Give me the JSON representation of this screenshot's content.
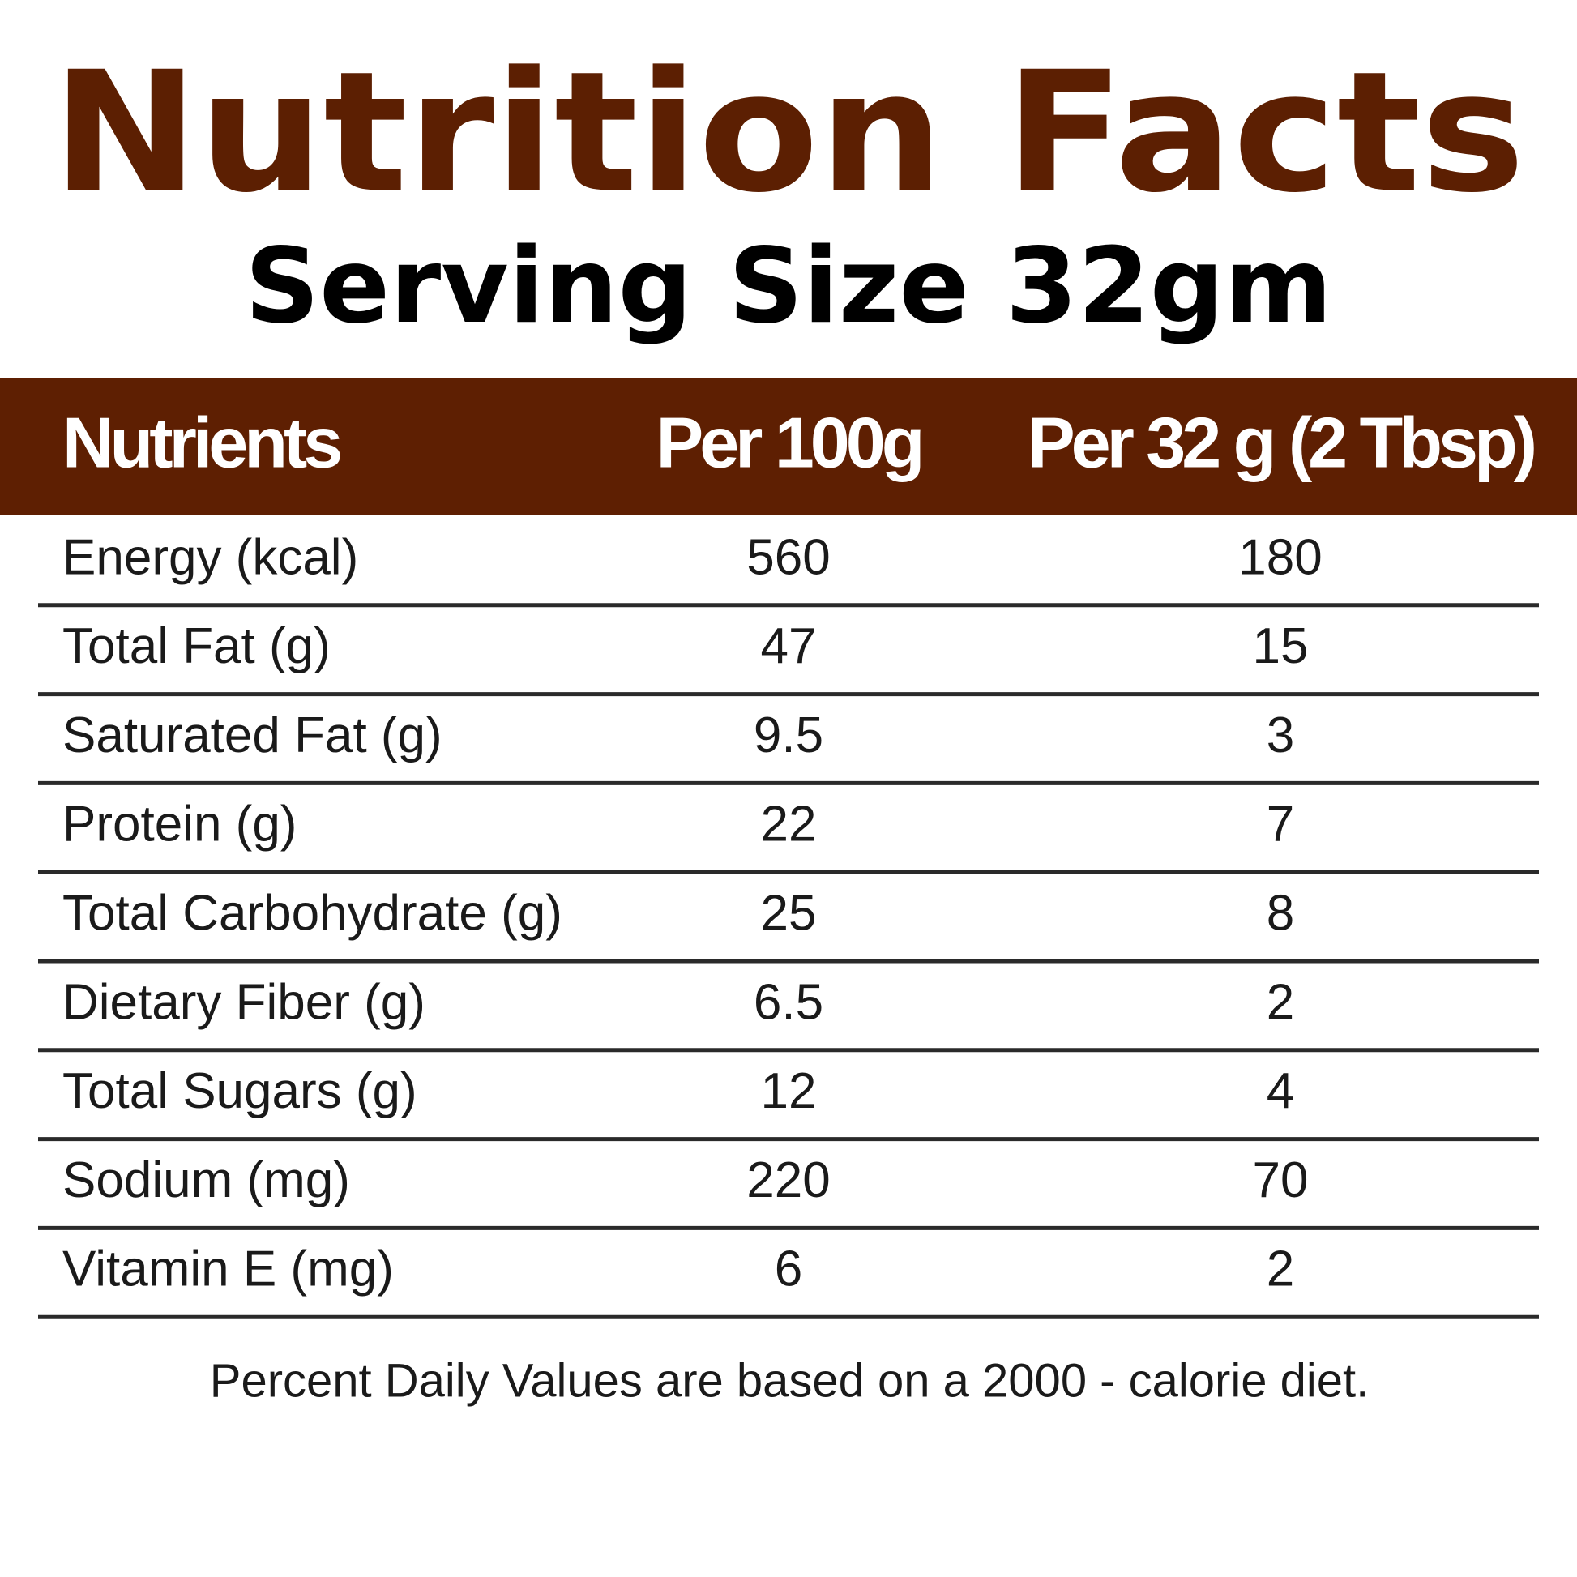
{
  "header": {
    "title": "Nutrition Facts",
    "subtitle": "Serving Size 32gm"
  },
  "table": {
    "columns": [
      "Nutrients",
      "Per 100g",
      "Per 32 g (2 Tbsp)"
    ],
    "rows": [
      [
        "Energy (kcal)",
        560,
        180
      ],
      [
        "Total Fat (g)",
        47,
        15
      ],
      [
        "Saturated Fat (g)",
        9.5,
        3
      ],
      [
        "Protein (g)",
        22,
        7
      ],
      [
        "Total Carbohydrate (g)",
        25,
        8
      ],
      [
        "Dietary Fiber (g)",
        6.5,
        2
      ],
      [
        "Total Sugars (g)",
        12,
        4
      ],
      [
        "Sodium (mg)",
        220,
        70
      ],
      [
        "Vitamin E (mg)",
        6,
        2
      ]
    ]
  },
  "footer": "Percent Daily Values are based on a 2000 - calorie diet."
}
